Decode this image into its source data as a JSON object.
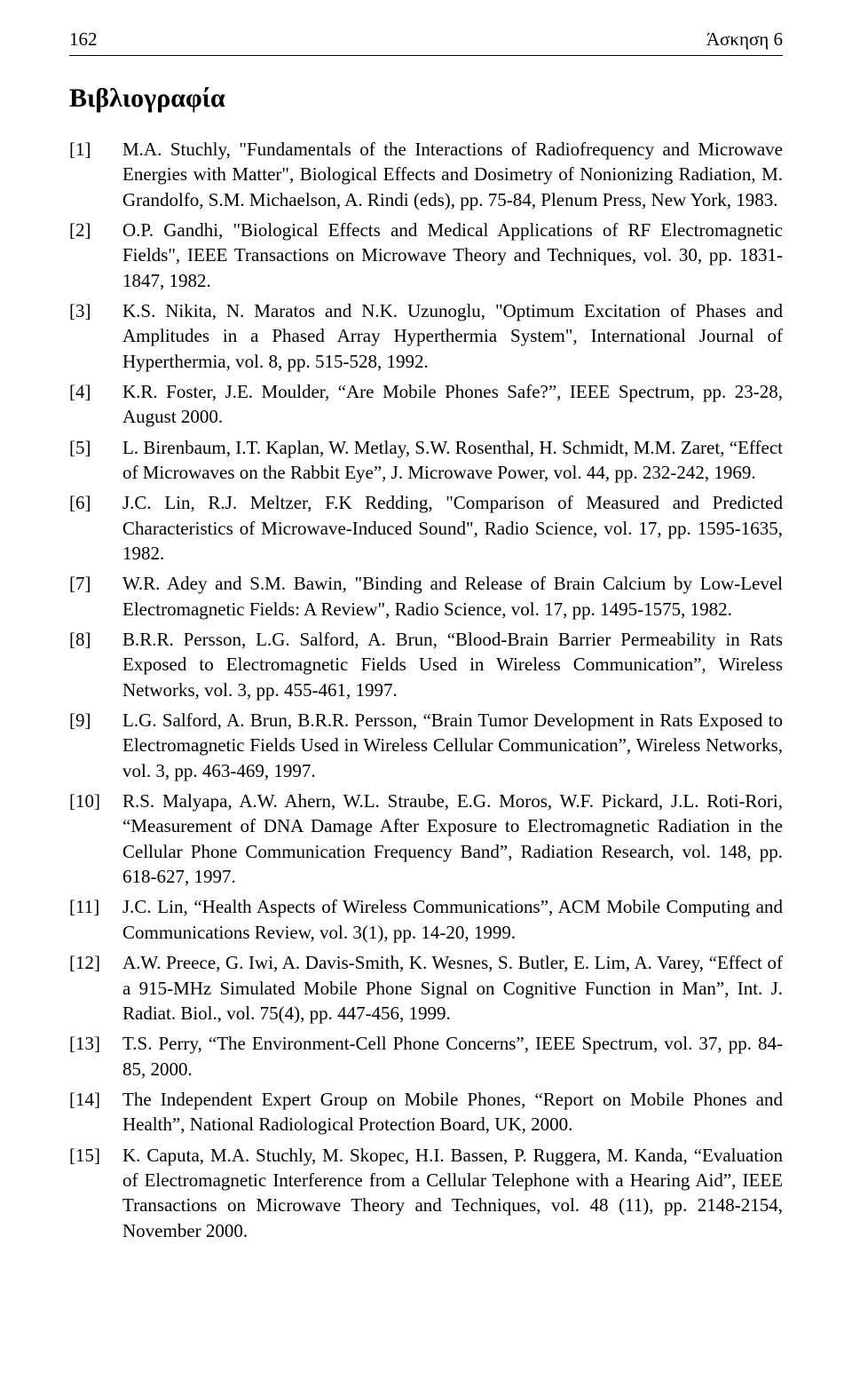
{
  "page_number": "162",
  "header_title": "Άσκηση 6",
  "bibliography_heading": "Βιβλιογραφία",
  "font_family": "Times New Roman",
  "font_size_body_pt": 16,
  "font_size_heading_pt": 22,
  "text_color": "#000000",
  "background_color": "#ffffff",
  "rule_color": "#000000",
  "references": [
    {
      "label": "[1]",
      "text": "M.A. Stuchly, \"Fundamentals of the Interactions of Radiofrequency and Microwave Energies with Matter\", Biological Effects and Dosimetry of Nonionizing Radiation, M. Grandolfo, S.M. Michaelson, A. Rindi (eds), pp. 75-84, Plenum Press, New York, 1983."
    },
    {
      "label": "[2]",
      "text": "O.P. Gandhi, \"Biological Effects and Medical Applications of RF Electromagnetic Fields\", IEEE Transactions on Microwave Theory and Techniques, vol. 30, pp. 1831-1847, 1982."
    },
    {
      "label": "[3]",
      "text": "K.S. Nikita, N. Maratos and N.K. Uzunoglu, \"Optimum Excitation of Phases and Amplitudes in a Phased Array Hyperthermia System\", International Journal of Hyperthermia, vol. 8, pp. 515-528, 1992."
    },
    {
      "label": "[4]",
      "text": "K.R. Foster, J.E. Moulder, “Are Mobile Phones Safe?”, IEEE Spectrum, pp. 23-28, August 2000."
    },
    {
      "label": "[5]",
      "text": "L. Birenbaum, I.T. Kaplan, W. Metlay, S.W. Rosenthal, H. Schmidt, M.M. Zaret, “Effect of Microwaves on the Rabbit Eye”, J. Microwave Power, vol. 44, pp. 232-242, 1969."
    },
    {
      "label": "[6]",
      "text": "J.C. Lin, R.J. Meltzer, F.K Redding, \"Comparison of Measured and Predicted Characteristics of Microwave-Induced Sound\", Radio Science, vol. 17, pp. 1595-1635, 1982."
    },
    {
      "label": "[7]",
      "text": "W.R. Adey and S.M. Bawin, \"Binding and Release of Brain Calcium by Low-Level Electromagnetic Fields: A Review\", Radio Science, vol. 17, pp. 1495-1575, 1982."
    },
    {
      "label": "[8]",
      "text": "B.R.R. Persson, L.G. Salford, A. Brun, “Blood-Brain Barrier Permeability in Rats Exposed to Electromagnetic Fields Used in Wireless Communication”, Wireless Networks, vol. 3, pp. 455-461, 1997."
    },
    {
      "label": "[9]",
      "text": "L.G. Salford, A. Brun, B.R.R. Persson, “Brain Tumor Development in Rats Exposed to Electromagnetic Fields Used in Wireless Cellular Communication”, Wireless Networks, vol. 3, pp. 463-469, 1997."
    },
    {
      "label": "[10]",
      "text": "R.S. Malyapa, A.W. Ahern, W.L. Straube, E.G. Moros, W.F. Pickard, J.L. Roti-Rori, “Measurement of DNA Damage After Exposure to Electromagnetic Radiation in the Cellular Phone Communication Frequency Band”, Radiation Research, vol. 148, pp. 618-627, 1997."
    },
    {
      "label": "[11]",
      "text": "J.C. Lin, “Health Aspects of Wireless Communications”, ACM Mobile Computing and Communications Review, vol. 3(1), pp. 14-20, 1999."
    },
    {
      "label": "[12]",
      "text": "A.W. Preece, G. Iwi, A. Davis-Smith, K. Wesnes, S. Butler, E. Lim, A. Varey, “Effect of a 915-MHz Simulated Mobile Phone Signal on Cognitive Function in Man”, Int. J. Radiat. Biol., vol. 75(4), pp. 447-456, 1999."
    },
    {
      "label": "[13]",
      "text": "T.S. Perry, “The Environment-Cell Phone Concerns”, IEEE Spectrum, vol. 37, pp. 84-85, 2000."
    },
    {
      "label": "[14]",
      "text": "The Independent Expert Group on Mobile Phones, “Report on Mobile Phones and Health”, National Radiological Protection Board, UK, 2000."
    },
    {
      "label": "[15]",
      "text": "K. Caputa, M.A. Stuchly, M. Skopec, H.I. Bassen, P. Ruggera, M. Kanda, “Evaluation of Electromagnetic Interference from a Cellular Telephone with a Hearing Aid”, IEEE Transactions on Microwave Theory and Techniques, vol. 48 (11), pp. 2148-2154, November 2000."
    }
  ]
}
